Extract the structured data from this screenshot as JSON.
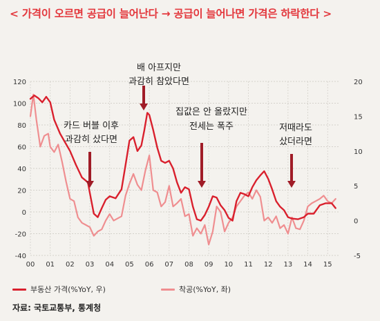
{
  "title": "< 가격이 오르면 공급이 늘어난다 → 공급이 늘어나면 가격은 하락한다 >",
  "source": "자료: 국토교통부, 통계청",
  "colors": {
    "price": "#d9202d",
    "construction": "#ef8e90",
    "arrow": "#a01c27",
    "title": "#e3383d"
  },
  "chart_data": {
    "type": "line",
    "x_ticks": [
      "00",
      "01",
      "02",
      "03",
      "04",
      "05",
      "06",
      "07",
      "08",
      "09",
      "10",
      "11",
      "12",
      "13",
      "14",
      "15"
    ],
    "y_left": {
      "min": -40,
      "max": 120,
      "ticks": [
        -40,
        -20,
        0,
        20,
        40,
        60,
        80,
        100,
        120
      ]
    },
    "y_right": {
      "min": -5,
      "max": 20,
      "ticks": [
        -5,
        0,
        5,
        10,
        15,
        20
      ]
    },
    "grid": true,
    "legend_position": "bottom",
    "series": [
      {
        "name": "부동산 가격(%YoY, 우)",
        "axis": "right",
        "color": "#d9202d",
        "x": [
          2000.0,
          2000.2,
          2000.4,
          2000.6,
          2000.8,
          2001.0,
          2001.2,
          2001.5,
          2001.8,
          2002.0,
          2002.3,
          2002.6,
          2002.9,
          2003.0,
          2003.2,
          2003.4,
          2003.6,
          2003.8,
          2004.0,
          2004.3,
          2004.6,
          2004.8,
          2005.0,
          2005.2,
          2005.4,
          2005.6,
          2005.75,
          2005.9,
          2006.0,
          2006.2,
          2006.4,
          2006.6,
          2006.8,
          2007.0,
          2007.2,
          2007.4,
          2007.6,
          2007.8,
          2008.0,
          2008.2,
          2008.4,
          2008.6,
          2008.8,
          2009.0,
          2009.2,
          2009.4,
          2009.6,
          2009.8,
          2010.0,
          2010.2,
          2010.4,
          2010.6,
          2010.8,
          2011.0,
          2011.2,
          2011.4,
          2011.6,
          2011.8,
          2012.0,
          2012.2,
          2012.4,
          2012.6,
          2012.8,
          2013.0,
          2013.2,
          2013.5,
          2013.8,
          2014.0,
          2014.3,
          2014.6,
          2014.9,
          2015.2,
          2015.4
        ],
        "y": [
          17.5,
          18.0,
          17.6,
          17.0,
          17.8,
          17.0,
          14.5,
          12.5,
          11.0,
          10.0,
          8.0,
          6.2,
          5.5,
          4.0,
          1.0,
          0.5,
          1.8,
          3.0,
          3.5,
          3.2,
          4.5,
          8.0,
          11.5,
          12.0,
          10.0,
          10.8,
          13.0,
          15.5,
          15.2,
          13.0,
          10.5,
          8.6,
          8.3,
          8.6,
          7.5,
          5.5,
          4.0,
          4.8,
          4.5,
          2.0,
          0.2,
          0.0,
          0.8,
          2.0,
          3.5,
          3.3,
          2.2,
          1.5,
          0.4,
          0.0,
          2.8,
          4.0,
          3.8,
          3.5,
          4.8,
          5.8,
          6.5,
          7.1,
          6.0,
          4.5,
          2.8,
          2.0,
          1.5,
          0.5,
          0.3,
          0.2,
          0.5,
          1.0,
          1.0,
          2.2,
          2.5,
          2.5,
          1.8
        ]
      },
      {
        "name": "착공(%YoY, 좌)",
        "axis": "left",
        "color": "#ef8e90",
        "x": [
          2000.0,
          2000.15,
          2000.3,
          2000.5,
          2000.7,
          2000.9,
          2001.0,
          2001.2,
          2001.4,
          2001.6,
          2001.8,
          2002.0,
          2002.2,
          2002.4,
          2002.6,
          2002.8,
          2003.0,
          2003.2,
          2003.4,
          2003.6,
          2003.8,
          2004.0,
          2004.2,
          2004.4,
          2004.6,
          2004.8,
          2005.0,
          2005.2,
          2005.4,
          2005.6,
          2005.8,
          2006.0,
          2006.2,
          2006.4,
          2006.6,
          2006.8,
          2007.0,
          2007.2,
          2007.4,
          2007.6,
          2007.8,
          2008.0,
          2008.2,
          2008.4,
          2008.6,
          2008.8,
          2009.0,
          2009.2,
          2009.4,
          2009.6,
          2009.8,
          2010.0,
          2010.2,
          2010.4,
          2010.6,
          2010.8,
          2011.0,
          2011.2,
          2011.4,
          2011.6,
          2011.8,
          2012.0,
          2012.2,
          2012.4,
          2012.6,
          2012.8,
          2013.0,
          2013.2,
          2013.4,
          2013.6,
          2013.8,
          2014.0,
          2014.2,
          2014.4,
          2014.6,
          2014.8,
          2015.0,
          2015.2,
          2015.4
        ],
        "y": [
          88,
          108,
          85,
          60,
          70,
          72,
          60,
          55,
          62,
          46,
          28,
          12,
          10,
          -5,
          -10,
          -12,
          -14,
          -22,
          -18,
          -16,
          -8,
          -2,
          -8,
          -6,
          -4,
          15,
          26,
          35,
          25,
          20,
          38,
          52,
          20,
          18,
          5,
          9,
          24,
          5,
          8,
          12,
          -4,
          -2,
          -22,
          -15,
          -20,
          -12,
          -30,
          -18,
          5,
          0,
          -18,
          -10,
          -5,
          5,
          10,
          15,
          18,
          12,
          20,
          14,
          -8,
          -5,
          -10,
          -4,
          -15,
          -12,
          -20,
          -5,
          -15,
          -16,
          -8,
          5,
          8,
          10,
          12,
          15,
          10,
          8,
          12
        ]
      }
    ],
    "annotations": [
      {
        "text": [
          "배 아프지만",
          "과감히 참았다면"
        ],
        "x": 2005.8
      },
      {
        "text": [
          "카드 버블 이후",
          "과감히 샀다면"
        ],
        "x": 2003.0
      },
      {
        "text": [
          "집값은 안 올랐지만",
          "전세는 폭주"
        ],
        "x": 2008.65
      },
      {
        "text": [
          "저때라도",
          "샀더라면"
        ],
        "x": 2013.0
      }
    ]
  }
}
